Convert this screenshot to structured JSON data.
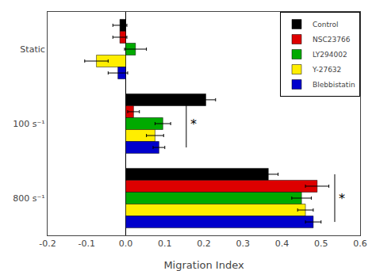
{
  "chart_data": {
    "type": "bar",
    "orientation": "horizontal",
    "categories": [
      "Static",
      "100 s⁻¹",
      "800 s⁻¹"
    ],
    "series": [
      {
        "name": "Control",
        "color": "#000000",
        "values": [
          -0.015,
          0.205,
          0.365
        ],
        "errors": [
          0.018,
          0.025,
          0.025
        ]
      },
      {
        "name": "NSC23766",
        "color": "#dd0000",
        "values": [
          -0.015,
          0.02,
          0.49
        ],
        "errors": [
          0.018,
          0.015,
          0.03
        ]
      },
      {
        "name": "LY294002",
        "color": "#00aa00",
        "values": [
          0.025,
          0.095,
          0.45
        ],
        "errors": [
          0.028,
          0.02,
          0.025
        ]
      },
      {
        "name": "Y-27632",
        "color": "#ffee00",
        "values": [
          -0.075,
          0.075,
          0.46
        ],
        "errors": [
          0.03,
          0.022,
          0.02
        ]
      },
      {
        "name": "Blebbistatin",
        "color": "#0000cc",
        "values": [
          -0.02,
          0.085,
          0.48
        ],
        "errors": [
          0.025,
          0.015,
          0.02
        ]
      }
    ],
    "xlabel": "Migration Index",
    "xlim": [
      -0.2,
      0.6
    ],
    "xticks": [
      -0.2,
      -0.1,
      {
        "value": 0,
        "label": "0.0"
      },
      0.1,
      0.2,
      0.3,
      0.4,
      0.5,
      0.6
    ],
    "grid": false,
    "legend": "upper right",
    "annotations": [
      {
        "text": "*",
        "x": 0.155,
        "y": "100 s⁻¹"
      },
      {
        "text": "*",
        "x": 0.535,
        "y": "800 s⁻¹"
      }
    ]
  }
}
